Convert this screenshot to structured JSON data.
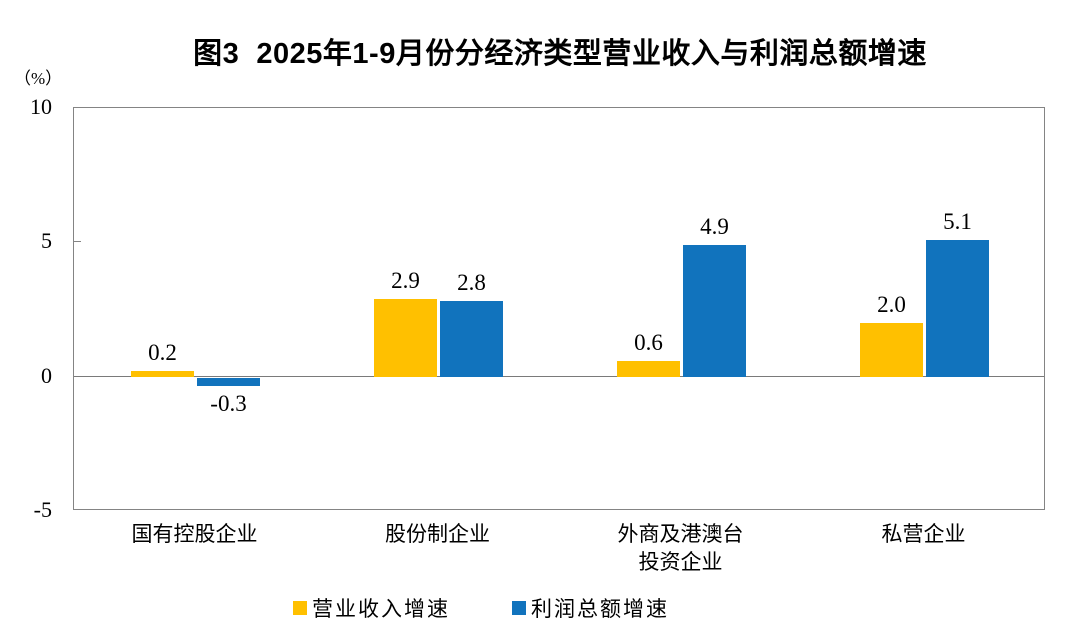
{
  "chart_data": {
    "type": "bar",
    "title": "图3  2025年1-9月份分经济类型营业收入与利润总额增速",
    "unit_label": "（%）",
    "categories": [
      "国有控股企业",
      "股份制企业",
      "外商及港澳台\n投资企业",
      "私营企业"
    ],
    "series": [
      {
        "name": "营业收入增速",
        "color": "#FFC000",
        "values": [
          0.2,
          2.9,
          0.6,
          2.0
        ]
      },
      {
        "name": "利润总额增速",
        "color": "#1173BD",
        "values": [
          -0.3,
          2.8,
          4.9,
          5.1
        ]
      }
    ],
    "value_labels": [
      [
        "0.2",
        "2.9",
        "0.6",
        "2.0"
      ],
      [
        "-0.3",
        "2.8",
        "4.9",
        "5.1"
      ]
    ],
    "ylim": [
      -5,
      10
    ],
    "yticks": [
      10,
      5,
      0,
      -5
    ],
    "xlabel": "",
    "ylabel": "（%）",
    "grid": false,
    "legend_position": "bottom",
    "colors": {
      "axis_line": "#848484",
      "zero_line": "#7a7a7a",
      "text": "#000000"
    }
  }
}
